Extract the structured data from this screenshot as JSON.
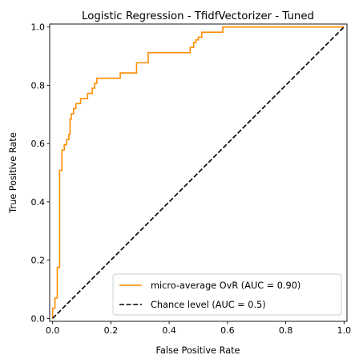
{
  "chart_data": {
    "type": "line",
    "title": "Logistic Regression - TfidfVectorizer - Tuned",
    "xlabel": "False Positive Rate",
    "ylabel": "True Positive Rate",
    "xlim": [
      -0.01,
      1.01
    ],
    "ylim": [
      -0.01,
      1.01
    ],
    "xticks": [
      "0.0",
      "0.2",
      "0.4",
      "0.6",
      "0.8",
      "1.0"
    ],
    "yticks": [
      "0.0",
      "0.2",
      "0.4",
      "0.6",
      "0.8",
      "1.0"
    ],
    "grid": false,
    "legend_position": "lower-right",
    "series": [
      {
        "name": "micro-average OvR (AUC = 0.90)",
        "color": "#ff8c00",
        "style": "solid",
        "x": [
          0.0,
          0.0,
          0.0,
          0.008,
          0.008,
          0.016,
          0.016,
          0.024,
          0.024,
          0.032,
          0.032,
          0.04,
          0.04,
          0.048,
          0.048,
          0.056,
          0.056,
          0.06,
          0.06,
          0.064,
          0.064,
          0.072,
          0.072,
          0.08,
          0.08,
          0.096,
          0.096,
          0.12,
          0.12,
          0.136,
          0.136,
          0.144,
          0.144,
          0.152,
          0.152,
          0.232,
          0.232,
          0.288,
          0.288,
          0.328,
          0.328,
          0.472,
          0.472,
          0.484,
          0.484,
          0.492,
          0.492,
          0.5,
          0.5,
          0.512,
          0.512,
          0.584,
          0.584,
          1.0
        ],
        "y": [
          0.0,
          0.018,
          0.035,
          0.035,
          0.07,
          0.07,
          0.175,
          0.175,
          0.508,
          0.508,
          0.578,
          0.578,
          0.596,
          0.596,
          0.614,
          0.614,
          0.632,
          0.632,
          0.684,
          0.684,
          0.702,
          0.702,
          0.72,
          0.72,
          0.737,
          0.737,
          0.754,
          0.754,
          0.772,
          0.772,
          0.79,
          0.79,
          0.807,
          0.807,
          0.824,
          0.824,
          0.842,
          0.842,
          0.877,
          0.877,
          0.912,
          0.912,
          0.93,
          0.93,
          0.947,
          0.947,
          0.956,
          0.956,
          0.965,
          0.965,
          0.982,
          0.982,
          1.0,
          1.0
        ]
      },
      {
        "name": "Chance level (AUC = 0.5)",
        "color": "#000000",
        "style": "dashed",
        "x": [
          0.0,
          1.0
        ],
        "y": [
          0.0,
          1.0
        ]
      }
    ]
  }
}
